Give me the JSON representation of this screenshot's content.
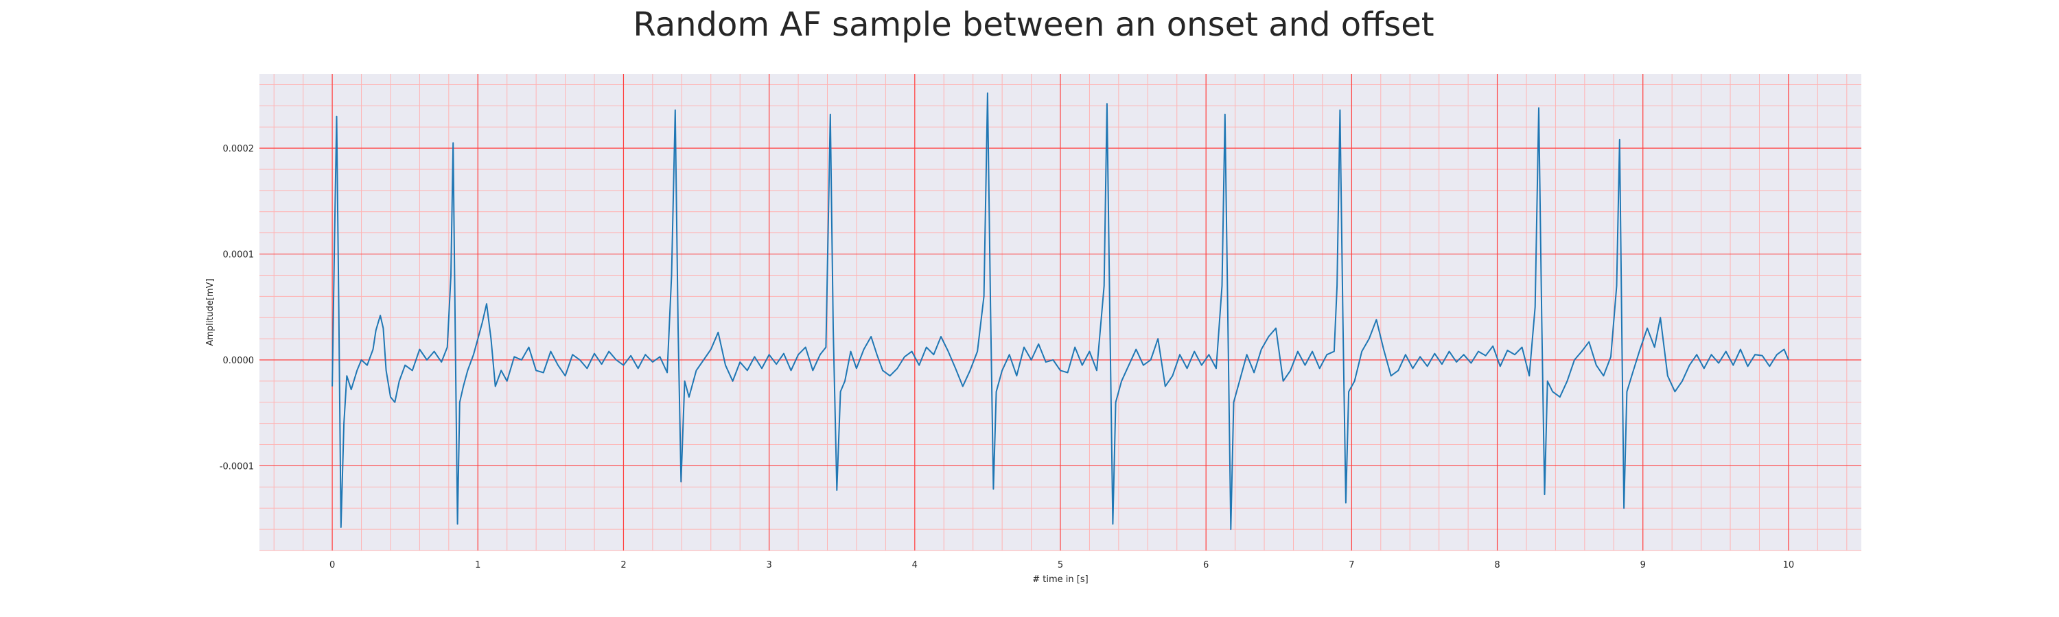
{
  "chart_data": {
    "type": "line",
    "title": "Random AF sample between an onset and offset",
    "xlabel": "# time in [s]",
    "ylabel": "Amplitude[mV]",
    "xlim": [
      -0.5,
      10.5
    ],
    "ylim": [
      -0.00018,
      0.00027
    ],
    "x_ticks": [
      0,
      1,
      2,
      3,
      4,
      5,
      6,
      7,
      8,
      9,
      10
    ],
    "x_tick_labels": [
      "0",
      "1",
      "2",
      "3",
      "4",
      "5",
      "6",
      "7",
      "8",
      "9",
      "10"
    ],
    "y_ticks": [
      -0.0001,
      0.0,
      0.0001,
      0.0002
    ],
    "y_tick_labels": [
      "-0.0001",
      "0.0000",
      "0.0001",
      "0.0002"
    ],
    "grid": true,
    "minor_grid": true,
    "background_color": "#eaeaf2",
    "major_grid_color": "#ff4040",
    "minor_grid_color": "#ffb3b3",
    "series": [
      {
        "color": "#1f77b4",
        "points": [
          [
            0.0,
            -2.5e-05
          ],
          [
            0.015,
            0.00011
          ],
          [
            0.03,
            0.00023
          ],
          [
            0.045,
            5e-05
          ],
          [
            0.06,
            -0.000158
          ],
          [
            0.08,
            -6e-05
          ],
          [
            0.1,
            -1.5e-05
          ],
          [
            0.13,
            -2.8e-05
          ],
          [
            0.17,
            -1e-05
          ],
          [
            0.2,
            0.0
          ],
          [
            0.24,
            -5e-06
          ],
          [
            0.28,
            1e-05
          ],
          [
            0.3,
            2.8e-05
          ],
          [
            0.33,
            4.2e-05
          ],
          [
            0.35,
            3e-05
          ],
          [
            0.37,
            -1e-05
          ],
          [
            0.4,
            -3.5e-05
          ],
          [
            0.43,
            -4e-05
          ],
          [
            0.46,
            -2e-05
          ],
          [
            0.5,
            -5e-06
          ],
          [
            0.55,
            -1e-05
          ],
          [
            0.6,
            1e-05
          ],
          [
            0.65,
            0.0
          ],
          [
            0.7,
            8e-06
          ],
          [
            0.75,
            -2e-06
          ],
          [
            0.79,
            1.2e-05
          ],
          [
            0.815,
            8e-05
          ],
          [
            0.83,
            0.000205
          ],
          [
            0.845,
            2e-05
          ],
          [
            0.86,
            -0.000155
          ],
          [
            0.875,
            -4e-05
          ],
          [
            0.9,
            -2.5e-05
          ],
          [
            0.93,
            -1e-05
          ],
          [
            0.97,
            5e-06
          ],
          [
            1.0,
            2e-05
          ],
          [
            1.03,
            3.5e-05
          ],
          [
            1.06,
            5.3e-05
          ],
          [
            1.09,
            2e-05
          ],
          [
            1.12,
            -2.5e-05
          ],
          [
            1.16,
            -1e-05
          ],
          [
            1.2,
            -2e-05
          ],
          [
            1.25,
            3e-06
          ],
          [
            1.3,
            0.0
          ],
          [
            1.35,
            1.2e-05
          ],
          [
            1.4,
            -1e-05
          ],
          [
            1.45,
            -1.2e-05
          ],
          [
            1.5,
            8e-06
          ],
          [
            1.55,
            -5e-06
          ],
          [
            1.6,
            -1.5e-05
          ],
          [
            1.65,
            5e-06
          ],
          [
            1.7,
            0.0
          ],
          [
            1.75,
            -8e-06
          ],
          [
            1.8,
            6e-06
          ],
          [
            1.85,
            -4e-06
          ],
          [
            1.9,
            8e-06
          ],
          [
            1.95,
            0.0
          ],
          [
            2.0,
            -5e-06
          ],
          [
            2.05,
            4e-06
          ],
          [
            2.1,
            -8e-06
          ],
          [
            2.15,
            5e-06
          ],
          [
            2.2,
            -2e-06
          ],
          [
            2.25,
            3e-06
          ],
          [
            2.3,
            -1.2e-05
          ],
          [
            2.33,
            8e-05
          ],
          [
            2.355,
            0.000236
          ],
          [
            2.375,
            3e-05
          ],
          [
            2.395,
            -0.000115
          ],
          [
            2.42,
            -2e-05
          ],
          [
            2.45,
            -3.5e-05
          ],
          [
            2.5,
            -1e-05
          ],
          [
            2.55,
            0.0
          ],
          [
            2.6,
            1e-05
          ],
          [
            2.65,
            2.6e-05
          ],
          [
            2.7,
            -5e-06
          ],
          [
            2.75,
            -2e-05
          ],
          [
            2.8,
            -2e-06
          ],
          [
            2.85,
            -1e-05
          ],
          [
            2.9,
            3e-06
          ],
          [
            2.95,
            -8e-06
          ],
          [
            3.0,
            5e-06
          ],
          [
            3.05,
            -4e-06
          ],
          [
            3.1,
            6e-06
          ],
          [
            3.15,
            -1e-05
          ],
          [
            3.2,
            5e-06
          ],
          [
            3.25,
            1.2e-05
          ],
          [
            3.3,
            -1e-05
          ],
          [
            3.35,
            5e-06
          ],
          [
            3.39,
            1.2e-05
          ],
          [
            3.42,
            0.000232
          ],
          [
            3.44,
            3e-05
          ],
          [
            3.465,
            -0.000123
          ],
          [
            3.49,
            -3e-05
          ],
          [
            3.52,
            -2e-05
          ],
          [
            3.56,
            8e-06
          ],
          [
            3.6,
            -8e-06
          ],
          [
            3.65,
            1e-05
          ],
          [
            3.7,
            2.2e-05
          ],
          [
            3.74,
            5e-06
          ],
          [
            3.78,
            -1e-05
          ],
          [
            3.83,
            -1.5e-05
          ],
          [
            3.88,
            -8e-06
          ],
          [
            3.93,
            3e-06
          ],
          [
            3.98,
            8e-06
          ],
          [
            4.03,
            -5e-06
          ],
          [
            4.08,
            1.2e-05
          ],
          [
            4.13,
            5e-06
          ],
          [
            4.18,
            2.2e-05
          ],
          [
            4.23,
            8e-06
          ],
          [
            4.28,
            -8e-06
          ],
          [
            4.33,
            -2.5e-05
          ],
          [
            4.38,
            -1e-05
          ],
          [
            4.43,
            8e-06
          ],
          [
            4.475,
            6e-05
          ],
          [
            4.5,
            0.000252
          ],
          [
            4.52,
            5e-05
          ],
          [
            4.54,
            -0.000122
          ],
          [
            4.56,
            -3e-05
          ],
          [
            4.6,
            -1e-05
          ],
          [
            4.65,
            5e-06
          ],
          [
            4.7,
            -1.5e-05
          ],
          [
            4.75,
            1.2e-05
          ],
          [
            4.8,
            0.0
          ],
          [
            4.85,
            1.5e-05
          ],
          [
            4.9,
            -2e-06
          ],
          [
            4.95,
            0.0
          ],
          [
            5.0,
            -1e-05
          ],
          [
            5.05,
            -1.2e-05
          ],
          [
            5.1,
            1.2e-05
          ],
          [
            5.15,
            -5e-06
          ],
          [
            5.2,
            8e-06
          ],
          [
            5.25,
            -1e-05
          ],
          [
            5.3,
            7e-05
          ],
          [
            5.32,
            0.000242
          ],
          [
            5.34,
            4e-05
          ],
          [
            5.36,
            -0.000155
          ],
          [
            5.38,
            -4e-05
          ],
          [
            5.42,
            -2e-05
          ],
          [
            5.47,
            -5e-06
          ],
          [
            5.52,
            1e-05
          ],
          [
            5.57,
            -5e-06
          ],
          [
            5.62,
            0.0
          ],
          [
            5.67,
            2e-05
          ],
          [
            5.72,
            -2.5e-05
          ],
          [
            5.77,
            -1.5e-05
          ],
          [
            5.82,
            5e-06
          ],
          [
            5.87,
            -8e-06
          ],
          [
            5.92,
            8e-06
          ],
          [
            5.97,
            -5e-06
          ],
          [
            6.02,
            5e-06
          ],
          [
            6.07,
            -8e-06
          ],
          [
            6.11,
            7e-05
          ],
          [
            6.13,
            0.000232
          ],
          [
            6.15,
            4e-05
          ],
          [
            6.17,
            -0.00016
          ],
          [
            6.19,
            -4e-05
          ],
          [
            6.23,
            -2e-05
          ],
          [
            6.28,
            5e-06
          ],
          [
            6.33,
            -1.2e-05
          ],
          [
            6.38,
            1e-05
          ],
          [
            6.43,
            2.2e-05
          ],
          [
            6.48,
            3e-05
          ],
          [
            6.53,
            -2e-05
          ],
          [
            6.58,
            -1e-05
          ],
          [
            6.63,
            8e-06
          ],
          [
            6.68,
            -5e-06
          ],
          [
            6.73,
            8e-06
          ],
          [
            6.78,
            -8e-06
          ],
          [
            6.83,
            5e-06
          ],
          [
            6.88,
            8e-06
          ],
          [
            6.9,
            7e-05
          ],
          [
            6.92,
            0.000236
          ],
          [
            6.94,
            4e-05
          ],
          [
            6.96,
            -0.000135
          ],
          [
            6.98,
            -3e-05
          ],
          [
            7.02,
            -2e-05
          ],
          [
            7.07,
            8e-06
          ],
          [
            7.12,
            2e-05
          ],
          [
            7.17,
            3.8e-05
          ],
          [
            7.22,
            1e-05
          ],
          [
            7.27,
            -1.5e-05
          ],
          [
            7.32,
            -1e-05
          ],
          [
            7.37,
            5e-06
          ],
          [
            7.42,
            -8e-06
          ],
          [
            7.47,
            3e-06
          ],
          [
            7.52,
            -6e-06
          ],
          [
            7.57,
            6e-06
          ],
          [
            7.62,
            -4e-06
          ],
          [
            7.67,
            8e-06
          ],
          [
            7.72,
            -2e-06
          ],
          [
            7.77,
            5e-06
          ],
          [
            7.82,
            -3e-06
          ],
          [
            7.87,
            8e-06
          ],
          [
            7.92,
            4e-06
          ],
          [
            7.97,
            1.3e-05
          ],
          [
            8.02,
            -6e-06
          ],
          [
            8.07,
            9e-06
          ],
          [
            8.12,
            5e-06
          ],
          [
            8.17,
            1.2e-05
          ],
          [
            8.22,
            -1.5e-05
          ],
          [
            8.26,
            5e-05
          ],
          [
            8.285,
            0.000238
          ],
          [
            8.305,
            4e-05
          ],
          [
            8.325,
            -0.000127
          ],
          [
            8.345,
            -2e-05
          ],
          [
            8.38,
            -3e-05
          ],
          [
            8.43,
            -3.5e-05
          ],
          [
            8.48,
            -2e-05
          ],
          [
            8.53,
            0.0
          ],
          [
            8.58,
            8e-06
          ],
          [
            8.63,
            1.7e-05
          ],
          [
            8.68,
            -5e-06
          ],
          [
            8.73,
            -1.5e-05
          ],
          [
            8.78,
            3e-06
          ],
          [
            8.82,
            7e-05
          ],
          [
            8.84,
            0.000208
          ],
          [
            8.855,
            3e-05
          ],
          [
            8.87,
            -0.00014
          ],
          [
            8.89,
            -3e-05
          ],
          [
            8.93,
            -1.2e-05
          ],
          [
            8.98,
            1e-05
          ],
          [
            9.03,
            3e-05
          ],
          [
            9.08,
            1.2e-05
          ],
          [
            9.12,
            4e-05
          ],
          [
            9.17,
            -1.5e-05
          ],
          [
            9.22,
            -3e-05
          ],
          [
            9.27,
            -2e-05
          ],
          [
            9.32,
            -5e-06
          ],
          [
            9.37,
            5e-06
          ],
          [
            9.42,
            -8e-06
          ],
          [
            9.47,
            5e-06
          ],
          [
            9.52,
            -3e-06
          ],
          [
            9.57,
            8e-06
          ],
          [
            9.62,
            -5e-06
          ],
          [
            9.67,
            1e-05
          ],
          [
            9.72,
            -6e-06
          ],
          [
            9.77,
            5e-06
          ],
          [
            9.82,
            4e-06
          ],
          [
            9.87,
            -6e-06
          ],
          [
            9.92,
            5e-06
          ],
          [
            9.97,
            1e-05
          ],
          [
            10.0,
            0.0
          ]
        ]
      }
    ]
  }
}
